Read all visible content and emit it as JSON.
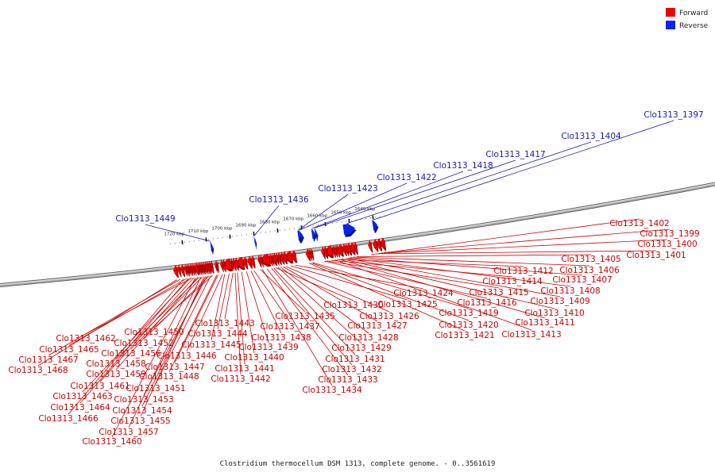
{
  "colors": {
    "forward": "#f00000",
    "reverse": "#0a24f0",
    "backbone": "#8c8c8c",
    "label_forward": "#cc0000",
    "label_reverse": "#1a1ab4"
  },
  "legend": {
    "forward": "Forward",
    "reverse": "Reverse"
  },
  "caption": "Clostridium thermocellum DSM 1313, complete genome. - 0..3561619",
  "axis": {
    "unit": "kbp",
    "ticks": [
      {
        "kbp": 1720,
        "label": "1720 kbp"
      },
      {
        "kbp": 1710,
        "label": "1710 kbp"
      },
      {
        "kbp": 1700,
        "label": "1700 kbp"
      },
      {
        "kbp": 1690,
        "label": "1690 kbp"
      },
      {
        "kbp": 1680,
        "label": "1680 kbp"
      },
      {
        "kbp": 1670,
        "label": "1670 kbp"
      },
      {
        "kbp": 1660,
        "label": "1660 kbp"
      },
      {
        "kbp": 1650,
        "label": "1650 kbp"
      },
      {
        "kbp": 1640,
        "label": "1640 kbp"
      }
    ]
  },
  "reverse_genes": [
    {
      "name": "Clo1313_1397",
      "pos_kbp": 1639.3,
      "len_kbp": 1.2
    },
    {
      "name": "Clo1313_1404",
      "pos_kbp": 1649.2,
      "len_kbp": 3.6
    },
    {
      "name": "Clo1313_1417",
      "pos_kbp": 1664.2,
      "len_kbp": 0.5
    },
    {
      "name": "Clo1313_1418",
      "pos_kbp": 1665.2,
      "len_kbp": 0.8
    },
    {
      "name": "Clo1313_1422",
      "pos_kbp": 1670.4,
      "len_kbp": 1.1
    },
    {
      "name": "Clo1313_1423",
      "pos_kbp": 1671.3,
      "len_kbp": 0.5
    },
    {
      "name": "Clo1313_1436",
      "pos_kbp": 1689.8,
      "len_kbp": 0.3
    },
    {
      "name": "Clo1313_1449",
      "pos_kbp": 1707.9,
      "len_kbp": 0.5
    }
  ],
  "forward_genes": [
    {
      "name": "Clo1313_1399",
      "pos_kbp": 1636.8,
      "len_kbp": 1.1
    },
    {
      "name": "Clo1313_1400",
      "pos_kbp": 1638.5,
      "len_kbp": 1.0
    },
    {
      "name": "Clo1313_1401",
      "pos_kbp": 1640.0,
      "len_kbp": 1.1
    },
    {
      "name": "Clo1313_1402",
      "pos_kbp": 1642.4,
      "len_kbp": 0.8
    },
    {
      "name": "Clo1313_1405",
      "pos_kbp": 1648.5,
      "len_kbp": 0.9
    },
    {
      "name": "Clo1313_1406",
      "pos_kbp": 1649.6,
      "len_kbp": 1.2
    },
    {
      "name": "Clo1313_1407",
      "pos_kbp": 1651.1,
      "len_kbp": 1.0
    },
    {
      "name": "Clo1313_1408",
      "pos_kbp": 1652.3,
      "len_kbp": 0.7
    },
    {
      "name": "Clo1313_1409",
      "pos_kbp": 1653.2,
      "len_kbp": 0.8
    },
    {
      "name": "Clo1313_1410",
      "pos_kbp": 1654.5,
      "len_kbp": 1.4
    },
    {
      "name": "Clo1313_1411",
      "pos_kbp": 1656.1,
      "len_kbp": 0.7
    },
    {
      "name": "Clo1313_1412",
      "pos_kbp": 1657.0,
      "len_kbp": 0.6
    },
    {
      "name": "Clo1313_1413",
      "pos_kbp": 1657.8,
      "len_kbp": 0.6
    },
    {
      "name": "Clo1313_1414",
      "pos_kbp": 1658.7,
      "len_kbp": 2.1
    },
    {
      "name": "Clo1313_1415",
      "pos_kbp": 1661.0,
      "len_kbp": 0.9
    },
    {
      "name": "Clo1313_1416",
      "pos_kbp": 1662.1,
      "len_kbp": 0.7
    },
    {
      "name": "Clo1313_1419",
      "pos_kbp": 1666.9,
      "len_kbp": 0.5
    },
    {
      "name": "Clo1313_1420",
      "pos_kbp": 1667.6,
      "len_kbp": 0.5
    },
    {
      "name": "Clo1313_1421",
      "pos_kbp": 1668.3,
      "len_kbp": 0.9
    },
    {
      "name": "Clo1313_1424",
      "pos_kbp": 1674.0,
      "len_kbp": 1.2
    },
    {
      "name": "Clo1313_1425",
      "pos_kbp": 1675.6,
      "len_kbp": 2.0
    },
    {
      "name": "Clo1313_1426",
      "pos_kbp": 1678.0,
      "len_kbp": 1.0
    },
    {
      "name": "Clo1313_1427",
      "pos_kbp": 1679.2,
      "len_kbp": 0.9
    },
    {
      "name": "Clo1313_1428",
      "pos_kbp": 1680.4,
      "len_kbp": 0.8
    },
    {
      "name": "Clo1313_1429",
      "pos_kbp": 1681.4,
      "len_kbp": 0.7
    },
    {
      "name": "Clo1313_1430",
      "pos_kbp": 1682.3,
      "len_kbp": 1.0
    },
    {
      "name": "Clo1313_1431",
      "pos_kbp": 1683.4,
      "len_kbp": 0.5
    },
    {
      "name": "Clo1313_1432",
      "pos_kbp": 1684.1,
      "len_kbp": 0.7
    },
    {
      "name": "Clo1313_1433",
      "pos_kbp": 1685.0,
      "len_kbp": 2.7
    },
    {
      "name": "Clo1313_1434",
      "pos_kbp": 1688.0,
      "len_kbp": 0.5
    },
    {
      "name": "Clo1313_1435",
      "pos_kbp": 1688.8,
      "len_kbp": 0.6
    },
    {
      "name": "Clo1313_1437",
      "pos_kbp": 1691.4,
      "len_kbp": 0.9
    },
    {
      "name": "Clo1313_1438",
      "pos_kbp": 1692.6,
      "len_kbp": 1.0
    },
    {
      "name": "Clo1313_1439",
      "pos_kbp": 1694.5,
      "len_kbp": 0.9
    },
    {
      "name": "Clo1313_1440",
      "pos_kbp": 1695.8,
      "len_kbp": 2.3
    },
    {
      "name": "Clo1313_1441",
      "pos_kbp": 1698.3,
      "len_kbp": 0.8
    },
    {
      "name": "Clo1313_1442",
      "pos_kbp": 1699.3,
      "len_kbp": 0.8
    },
    {
      "name": "Clo1313_1443",
      "pos_kbp": 1700.3,
      "len_kbp": 0.5
    },
    {
      "name": "Clo1313_1444",
      "pos_kbp": 1700.9,
      "len_kbp": 2.5
    },
    {
      "name": "Clo1313_1445",
      "pos_kbp": 1703.6,
      "len_kbp": 0.8
    },
    {
      "name": "Clo1313_1446",
      "pos_kbp": 1704.6,
      "len_kbp": 0.5
    },
    {
      "name": "Clo1313_1447",
      "pos_kbp": 1706.5,
      "len_kbp": 0.5
    },
    {
      "name": "Clo1313_1448",
      "pos_kbp": 1707.1,
      "len_kbp": 0.4
    },
    {
      "name": "Clo1313_1450",
      "pos_kbp": 1708.7,
      "len_kbp": 0.8
    },
    {
      "name": "Clo1313_1451",
      "pos_kbp": 1709.6,
      "len_kbp": 0.5
    },
    {
      "name": "Clo1313_1452",
      "pos_kbp": 1710.2,
      "len_kbp": 0.7
    },
    {
      "name": "Clo1313_1453",
      "pos_kbp": 1711.0,
      "len_kbp": 0.7
    },
    {
      "name": "Clo1313_1454",
      "pos_kbp": 1711.8,
      "len_kbp": 0.4
    },
    {
      "name": "Clo1313_1455",
      "pos_kbp": 1712.3,
      "len_kbp": 0.6
    },
    {
      "name": "Clo1313_1456",
      "pos_kbp": 1713.0,
      "len_kbp": 0.6
    },
    {
      "name": "Clo1313_1457",
      "pos_kbp": 1713.7,
      "len_kbp": 0.6
    },
    {
      "name": "Clo1313_1458",
      "pos_kbp": 1714.4,
      "len_kbp": 0.4
    },
    {
      "name": "Clo1313_1459",
      "pos_kbp": 1714.9,
      "len_kbp": 0.9
    },
    {
      "name": "Clo1313_1460",
      "pos_kbp": 1716.0,
      "len_kbp": 0.5
    },
    {
      "name": "Clo1313_1461",
      "pos_kbp": 1716.7,
      "len_kbp": 0.5
    },
    {
      "name": "Clo1313_1462",
      "pos_kbp": 1717.4,
      "len_kbp": 0.6
    },
    {
      "name": "Clo1313_1463",
      "pos_kbp": 1718.2,
      "len_kbp": 0.4
    },
    {
      "name": "Clo1313_1464",
      "pos_kbp": 1718.8,
      "len_kbp": 0.7
    },
    {
      "name": "Clo1313_1465",
      "pos_kbp": 1719.7,
      "len_kbp": 0.5
    },
    {
      "name": "Clo1313_1466",
      "pos_kbp": 1720.8,
      "len_kbp": 0.8
    },
    {
      "name": "Clo1313_1467",
      "pos_kbp": 1722.3,
      "len_kbp": 0.6
    },
    {
      "name": "Clo1313_1468",
      "pos_kbp": 1723.5,
      "len_kbp": 1.0
    }
  ]
}
